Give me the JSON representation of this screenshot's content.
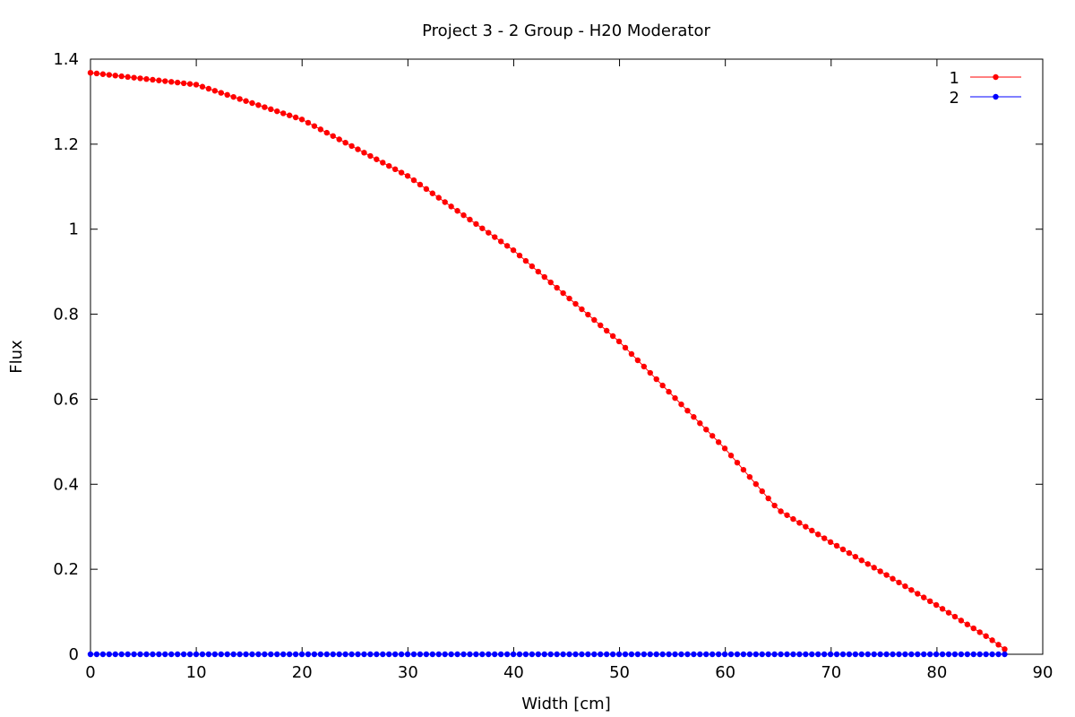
{
  "chart_data": {
    "type": "line",
    "title": "Project 3 - 2 Group - H20 Moderator",
    "xlabel": "Width [cm]",
    "ylabel": "Flux",
    "xlim": [
      0,
      90
    ],
    "ylim": [
      0,
      1.4
    ],
    "xticks": [
      0,
      10,
      20,
      30,
      40,
      50,
      60,
      70,
      80,
      90
    ],
    "yticks": [
      0,
      0.2,
      0.4,
      0.6,
      0.8,
      1,
      1.2,
      1.4
    ],
    "xtick_labels": [
      "0",
      "10",
      "20",
      "30",
      "40",
      "50",
      "60",
      "70",
      "80",
      "90"
    ],
    "ytick_labels": [
      "0",
      "0.2",
      "0.4",
      "0.6",
      "0.8",
      "1",
      "1.2",
      "1.4"
    ],
    "grid": false,
    "legend_position": "top-right",
    "x": [
      0,
      10,
      20,
      30,
      40,
      50,
      60,
      65,
      70,
      75,
      80,
      85,
      86.4
    ],
    "series": [
      {
        "name": "1",
        "color": "#ff0000",
        "values": [
          1.368,
          1.34,
          1.258,
          1.125,
          0.95,
          0.735,
          0.483,
          0.34,
          0.263,
          0.19,
          0.115,
          0.037,
          0.012
        ]
      },
      {
        "name": "2",
        "color": "#0000ff",
        "values": [
          0,
          0,
          0,
          0,
          0,
          0,
          0,
          0,
          0,
          0,
          0,
          0,
          0
        ]
      }
    ]
  }
}
